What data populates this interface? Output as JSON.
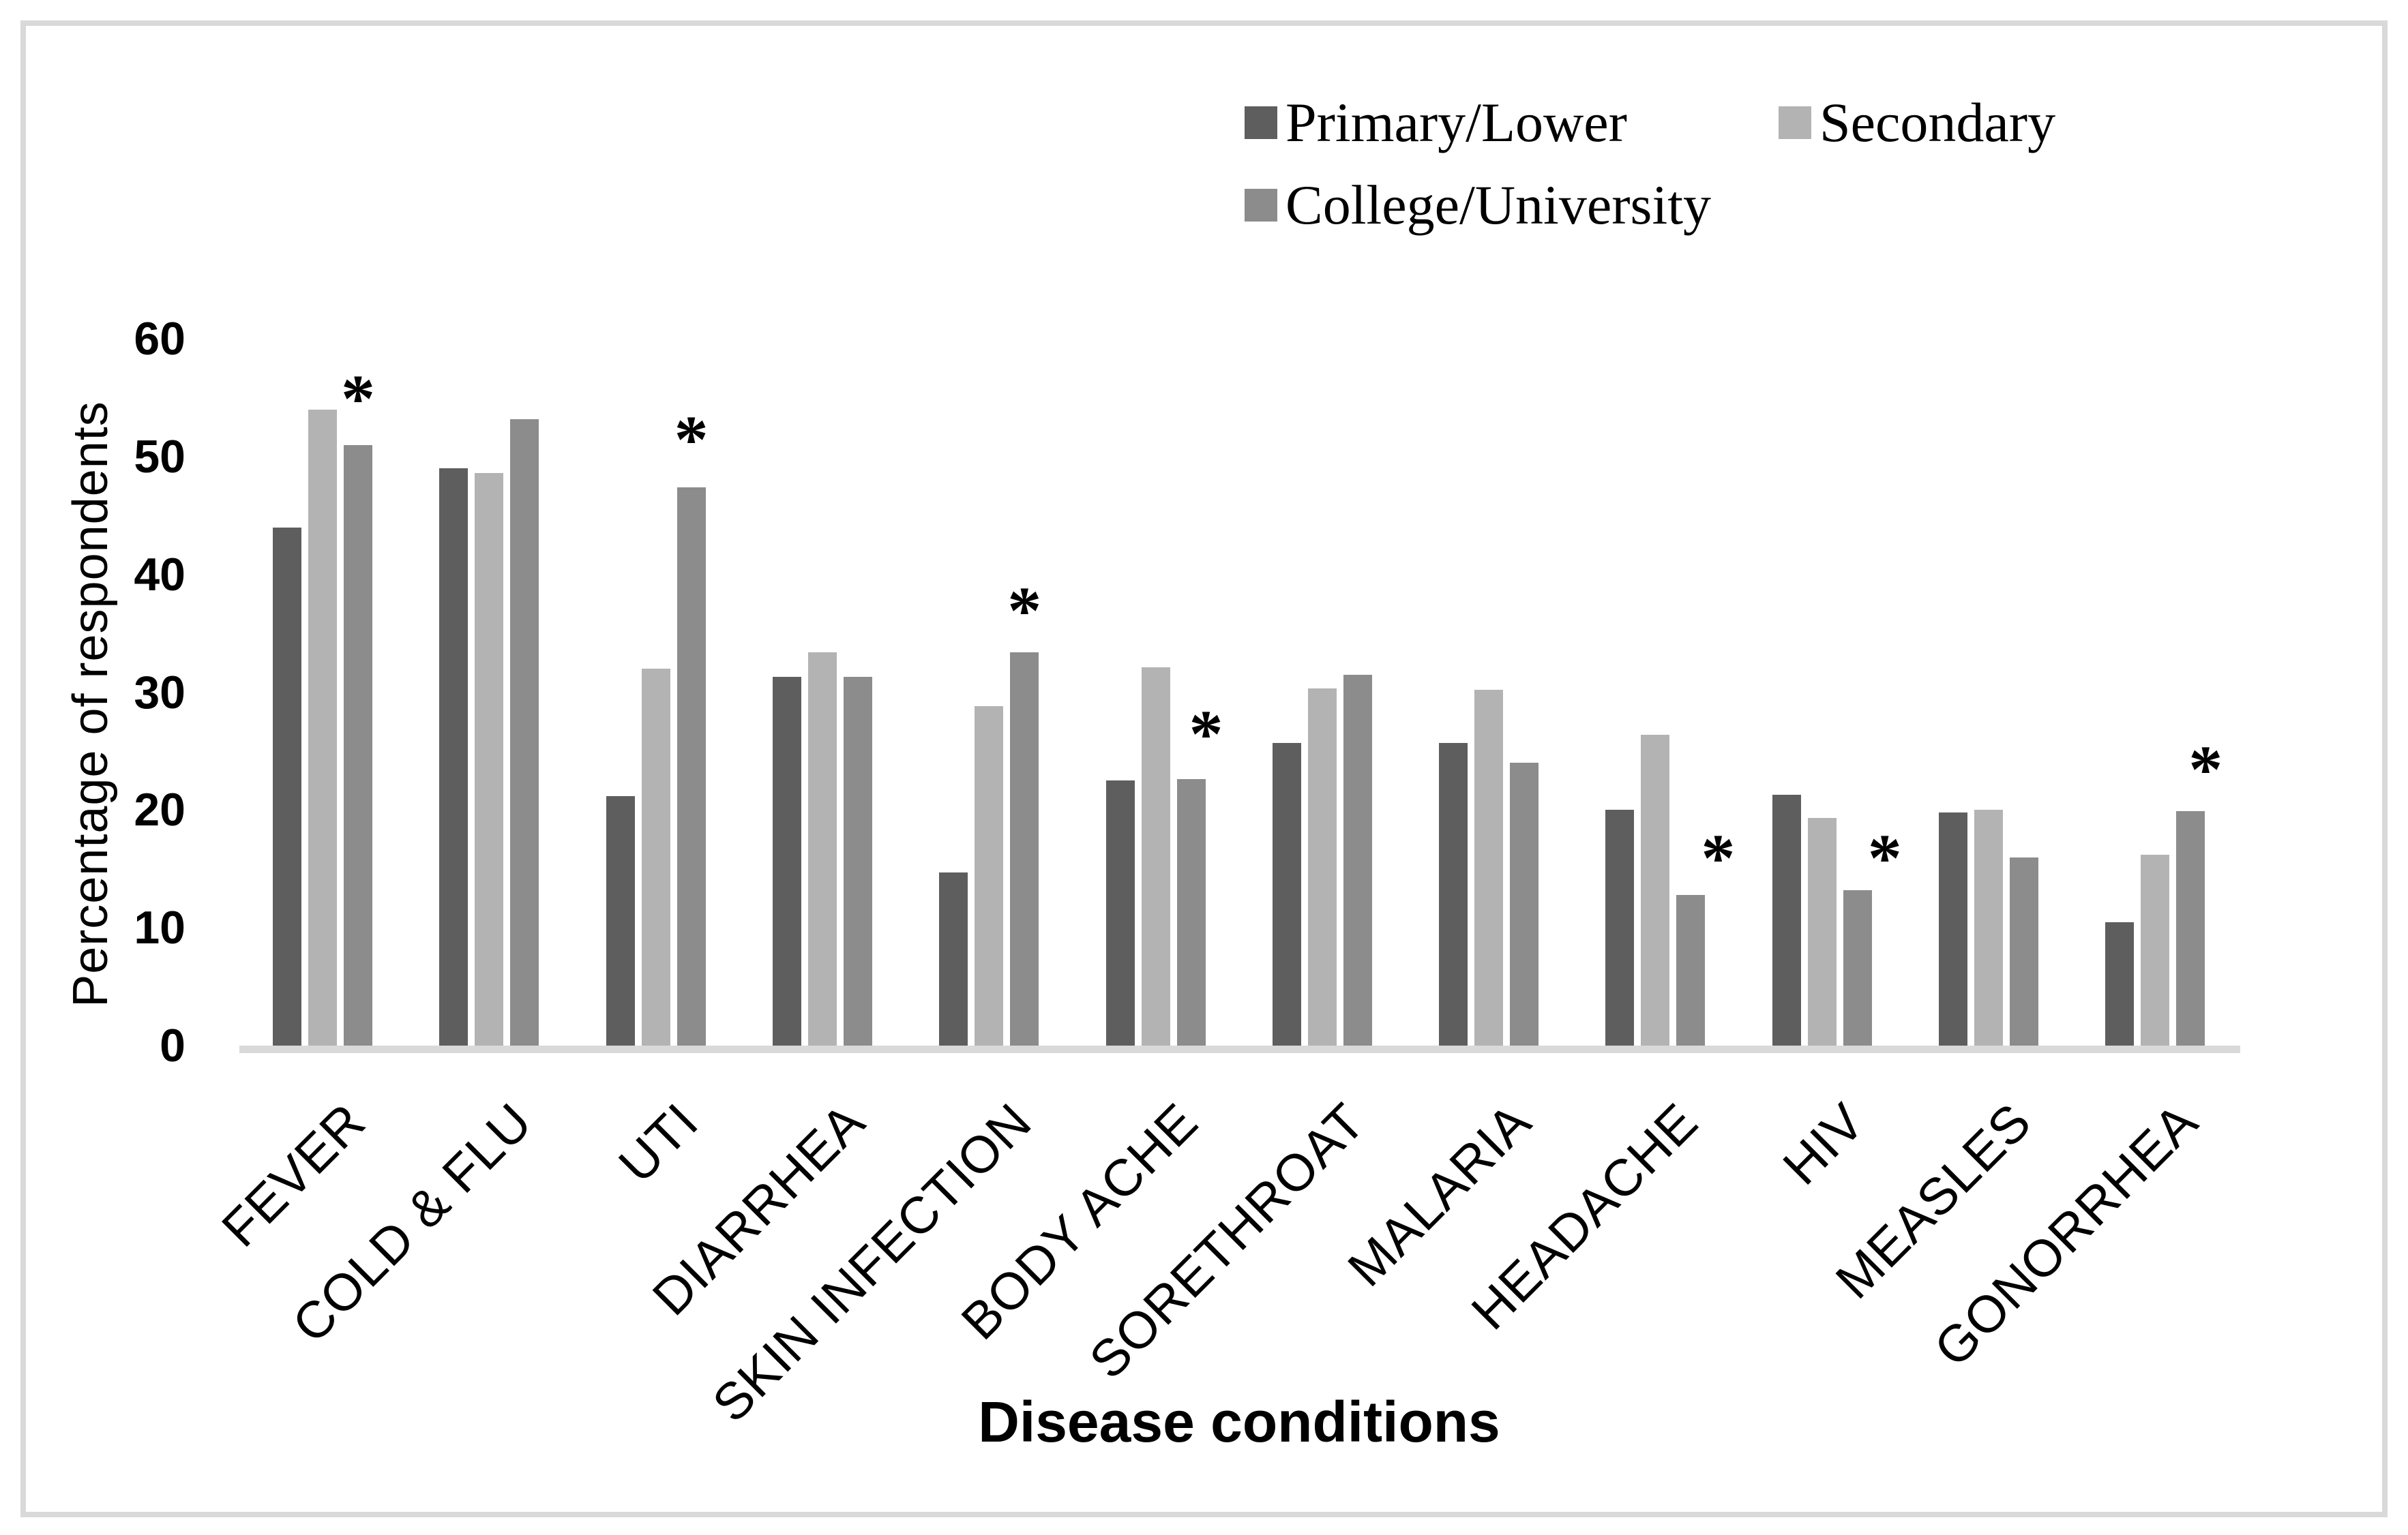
{
  "chart_data": {
    "type": "bar",
    "title": "",
    "categories": [
      "FEVER",
      "COLD & FLU",
      "UTI",
      "DIARRHEA",
      "SKIN INFECTION",
      "BODY ACHE",
      "SORETHROAT",
      "MALARIA",
      "HEADACHE",
      "HIV",
      "MEASLES",
      "GONORRHEA"
    ],
    "series": [
      {
        "name": "Primary/Lower",
        "color": "#5e5e5e",
        "values": [
          44,
          49,
          21.2,
          31.3,
          14.7,
          22.5,
          25.7,
          25.7,
          20,
          21.3,
          19.8,
          10.5
        ]
      },
      {
        "name": "Secondary",
        "color": "#b3b3b3",
        "values": [
          54,
          48.6,
          32,
          33.4,
          28.8,
          32.1,
          30.3,
          30.2,
          26.4,
          19.3,
          20,
          16.2
        ]
      },
      {
        "name": "College/University",
        "color": "#8c8c8c",
        "values": [
          51,
          53.2,
          47.4,
          31.3,
          33.4,
          22.6,
          31.5,
          24,
          12.8,
          13.2,
          16,
          19.9
        ]
      }
    ],
    "annotations": [
      {
        "category": "FEVER",
        "series": "College/University",
        "symbol": "*",
        "value": 55.5,
        "placement": "above"
      },
      {
        "category": "UTI",
        "series": "College/University",
        "symbol": "*",
        "value": 52,
        "placement": "above"
      },
      {
        "category": "SKIN INFECTION",
        "series": "College/University",
        "symbol": "*",
        "value": 37.5,
        "placement": "above"
      },
      {
        "category": "BODY ACHE",
        "series": "College/University",
        "symbol": "*",
        "value": 27,
        "placement": "above-right"
      },
      {
        "category": "HEADACHE",
        "series": "College/University",
        "symbol": "*",
        "value": 16.5,
        "placement": "right"
      },
      {
        "category": "HIV",
        "series": "College/University",
        "symbol": "*",
        "value": 16.5,
        "placement": "right"
      },
      {
        "category": "GONORRHEA",
        "series": "College/University",
        "symbol": "*",
        "value": 24,
        "placement": "above-right"
      }
    ],
    "ylabel": "Percentage of respondents",
    "xlabel": "Disease conditions",
    "y_ticks": [
      0,
      10,
      20,
      30,
      40,
      50,
      60
    ],
    "ylim": [
      0,
      60
    ],
    "grid": false,
    "legend_position": "top-center",
    "axis_color": "#d9d9d9",
    "frame_color": "#d9d9d9"
  }
}
